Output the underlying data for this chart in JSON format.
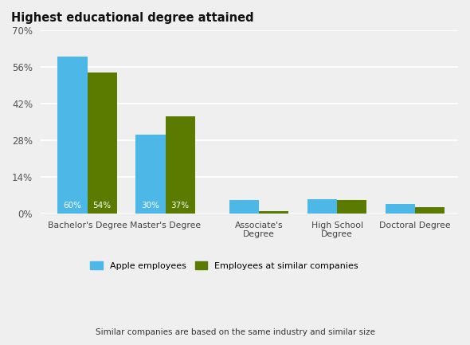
{
  "title": "Highest educational degree attained",
  "categories": [
    "Bachelor's Degree",
    "Master's Degree",
    "Associate's\nDegree",
    "High School\nDegree",
    "Doctoral Degree"
  ],
  "apple_values": [
    60,
    30,
    5,
    5.5,
    3.5
  ],
  "similar_values": [
    54,
    37,
    1,
    5,
    2.5
  ],
  "apple_color": "#4db8e8",
  "similar_color": "#5a7a00",
  "bar_labels_apple": [
    "60%",
    "30%",
    "",
    "",
    ""
  ],
  "bar_labels_similar": [
    "54%",
    "37%",
    "",
    "",
    ""
  ],
  "yticks": [
    0,
    14,
    28,
    42,
    56,
    70
  ],
  "ytick_labels": [
    "0%",
    "14%",
    "28%",
    "42%",
    "56%",
    "70%"
  ],
  "legend_apple": "Apple employees",
  "legend_similar": "Employees at similar companies",
  "footer_normal1": "Similar companies",
  "footer_normal2": " are based on the same ",
  "footer_bold1": "industry",
  "footer_normal3": " and ",
  "footer_bold2": "similar size",
  "background_color": "#efefef",
  "plot_background": "#efefef",
  "x_positions": [
    0,
    1,
    2.2,
    3.2,
    4.2
  ],
  "bar_width": 0.38
}
